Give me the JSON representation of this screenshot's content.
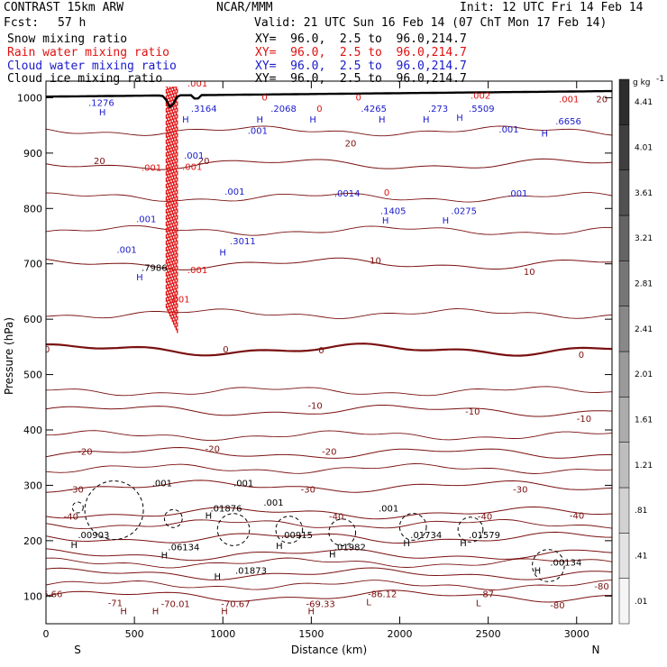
{
  "header": {
    "model": "CONTRAST 15km ARW",
    "org": "NCAR/MMM",
    "init": "Init: 12 UTC Fri 14 Feb 14",
    "fcst_label": "Fcst:",
    "fcst_value": "57 h",
    "valid": "Valid: 21 UTC Sun 16 Feb 14 (07 ChT Mon 17 Feb 14)",
    "fields": [
      {
        "name": "Snow mixing ratio",
        "xy": "XY=  96.0,  2.5 to  96.0,214.7",
        "color": "#000000"
      },
      {
        "name": "Rain water mixing ratio",
        "xy": "XY=  96.0,  2.5 to  96.0,214.7",
        "color": "#e01010"
      },
      {
        "name": "Cloud water mixing ratio",
        "xy": "XY=  96.0,  2.5 to  96.0,214.7",
        "color": "#1a1acc"
      },
      {
        "name": "Cloud ice mixing ratio",
        "xy": "XY=  96.0,  2.5 to  96.0,214.7",
        "color": "#000000"
      }
    ]
  },
  "chart_data": {
    "type": "cross-section contour",
    "xlabel": "Distance (km)",
    "ylabel": "Pressure (hPa)",
    "xlim": [
      0,
      3200
    ],
    "ylim": [
      1030,
      50
    ],
    "x_ticks": [
      0,
      500,
      1000,
      1500,
      2000,
      2500,
      3000
    ],
    "y_ticks": [
      100,
      200,
      300,
      400,
      500,
      600,
      700,
      800,
      900,
      1000
    ],
    "x_end_left": "S",
    "x_end_right": "N",
    "colorbar": {
      "unit": "g kg",
      "unit_exp": "-1",
      "ticks": [
        ".01",
        ".41",
        ".81",
        "1.21",
        "1.61",
        "2.01",
        "2.41",
        "2.81",
        "3.21",
        "3.61",
        "4.01",
        "4.41"
      ]
    },
    "isotherms": [
      {
        "value": -80,
        "label": "-80",
        "p": 100
      },
      {
        "value": -70,
        "label": "-70",
        "p": 140
      },
      {
        "value": -60,
        "label": "-60",
        "p": 175
      },
      {
        "value": -50,
        "label": "-50",
        "p": 205
      },
      {
        "value": -40,
        "label": "-40",
        "p": 250
      },
      {
        "value": -30,
        "label": "-30",
        "p": 298
      },
      {
        "value": -20,
        "label": "-20",
        "p": 358
      },
      {
        "value": -10,
        "label": "-10",
        "p": 435
      },
      {
        "value": 0,
        "label": "0",
        "p": 545
      },
      {
        "value": 10,
        "label": "10",
        "p": 700
      },
      {
        "value": 20,
        "label": "20",
        "p": 880
      }
    ],
    "contour_labels": [
      {
        "text": "-71",
        "x": 350,
        "p": 82,
        "color": "#7a1010"
      },
      {
        "text": "-70.01",
        "x": 650,
        "p": 80,
        "color": "#7a1010"
      },
      {
        "text": "-70.67",
        "x": 990,
        "p": 80,
        "color": "#7a1010"
      },
      {
        "text": "-69.33",
        "x": 1470,
        "p": 80,
        "color": "#7a1010"
      },
      {
        "text": "-86.12",
        "x": 1820,
        "p": 98,
        "color": "#7a1010"
      },
      {
        "text": "-87",
        "x": 2450,
        "p": 98,
        "color": "#7a1010"
      },
      {
        "text": "-80",
        "x": 2850,
        "p": 78,
        "color": "#7a1010"
      },
      {
        "text": "-80",
        "x": 3100,
        "p": 112,
        "color": "#7a1010"
      },
      {
        "text": "6.66",
        "x": -20,
        "p": 98,
        "color": "#7a1010"
      },
      {
        "text": "-40",
        "x": 100,
        "p": 238,
        "color": "#7a1010"
      },
      {
        "text": "-30",
        "x": 130,
        "p": 287,
        "color": "#7a1010"
      },
      {
        "text": "-20",
        "x": 180,
        "p": 355,
        "color": "#7a1010"
      },
      {
        "text": "-40",
        "x": 1600,
        "p": 238,
        "color": "#7a1010"
      },
      {
        "text": "-40",
        "x": 2440,
        "p": 238,
        "color": "#7a1010"
      },
      {
        "text": "-40",
        "x": 2960,
        "p": 240,
        "color": "#7a1010"
      },
      {
        "text": "-30",
        "x": 1440,
        "p": 287,
        "color": "#7a1010"
      },
      {
        "text": "-30",
        "x": 2640,
        "p": 287,
        "color": "#7a1010"
      },
      {
        "text": "-20",
        "x": 900,
        "p": 360,
        "color": "#7a1010"
      },
      {
        "text": "-20",
        "x": 1560,
        "p": 355,
        "color": "#7a1010"
      },
      {
        "text": "-10",
        "x": 1480,
        "p": 438,
        "color": "#7a1010"
      },
      {
        "text": "-10",
        "x": 2370,
        "p": 428,
        "color": "#7a1010"
      },
      {
        "text": "-10",
        "x": 3000,
        "p": 415,
        "color": "#7a1010"
      },
      {
        "text": "0",
        "x": -10,
        "p": 540,
        "color": "#7a1010"
      },
      {
        "text": "0",
        "x": 1000,
        "p": 540,
        "color": "#7a1010"
      },
      {
        "text": "0",
        "x": 1540,
        "p": 538,
        "color": "#7a1010"
      },
      {
        "text": "0",
        "x": 3010,
        "p": 530,
        "color": "#7a1010"
      },
      {
        "text": "10",
        "x": 1830,
        "p": 700,
        "color": "#7a1010"
      },
      {
        "text": "10",
        "x": 2700,
        "p": 680,
        "color": "#7a1010"
      },
      {
        "text": "20",
        "x": 270,
        "p": 880,
        "color": "#7a1010"
      },
      {
        "text": "20",
        "x": 860,
        "p": 880,
        "color": "#7a1010"
      },
      {
        "text": "20",
        "x": 1690,
        "p": 912,
        "color": "#7a1010"
      },
      {
        "text": "20",
        "x": 3110,
        "p": 992,
        "color": "#7a1010"
      },
      {
        "text": "H",
        "x": 420,
        "p": 67,
        "color": "#7a1010"
      },
      {
        "text": "H",
        "x": 600,
        "p": 67,
        "color": "#7a1010"
      },
      {
        "text": "H",
        "x": 990,
        "p": 67,
        "color": "#7a1010"
      },
      {
        "text": "H",
        "x": 1480,
        "p": 67,
        "color": "#7a1010"
      },
      {
        "text": "L",
        "x": 1810,
        "p": 83,
        "color": "#7a1010"
      },
      {
        "text": "L",
        "x": 2430,
        "p": 82,
        "color": "#7a1010"
      },
      {
        "text": ".00903",
        "x": 180,
        "p": 205,
        "color": "#000000"
      },
      {
        "text": ".06134",
        "x": 690,
        "p": 183,
        "color": "#000000"
      },
      {
        "text": ".01873",
        "x": 1070,
        "p": 140,
        "color": "#000000"
      },
      {
        "text": ".00915",
        "x": 1330,
        "p": 205,
        "color": "#000000"
      },
      {
        "text": ".01982",
        "x": 1630,
        "p": 183,
        "color": "#000000"
      },
      {
        "text": ".01734",
        "x": 2060,
        "p": 205,
        "color": "#000000"
      },
      {
        "text": ".01579",
        "x": 2390,
        "p": 205,
        "color": "#000000"
      },
      {
        "text": ".00134",
        "x": 2850,
        "p": 155,
        "color": "#000000"
      },
      {
        "text": ".01876",
        "x": 930,
        "p": 253,
        "color": "#000000"
      },
      {
        "text": ".001",
        "x": 1230,
        "p": 263,
        "color": "#000000"
      },
      {
        "text": ".001",
        "x": 1880,
        "p": 253,
        "color": "#000000"
      },
      {
        "text": ".001",
        "x": 600,
        "p": 298,
        "color": "#000000"
      },
      {
        "text": ".001",
        "x": 1060,
        "p": 298,
        "color": "#000000"
      },
      {
        "text": "H",
        "x": 950,
        "p": 130,
        "color": "#000000"
      },
      {
        "text": "H",
        "x": 140,
        "p": 187,
        "color": "#000000"
      },
      {
        "text": "H",
        "x": 650,
        "p": 168,
        "color": "#000000"
      },
      {
        "text": "H",
        "x": 1300,
        "p": 185,
        "color": "#000000"
      },
      {
        "text": "H",
        "x": 1600,
        "p": 170,
        "color": "#000000"
      },
      {
        "text": "H",
        "x": 2020,
        "p": 190,
        "color": "#000000"
      },
      {
        "text": "H",
        "x": 2340,
        "p": 190,
        "color": "#000000"
      },
      {
        "text": "H",
        "x": 2760,
        "p": 140,
        "color": "#000000"
      },
      {
        "text": "H",
        "x": 900,
        "p": 240,
        "color": "#000000"
      },
      {
        "text": "H",
        "x": 510,
        "p": 670,
        "color": "#1a1acc"
      },
      {
        "text": ".7986",
        "x": 540,
        "p": 687,
        "color": "#000000"
      },
      {
        "text": ".001",
        "x": 400,
        "p": 720,
        "color": "#1a1acc"
      },
      {
        "text": ".001",
        "x": 510,
        "p": 775,
        "color": "#1a1acc"
      },
      {
        "text": "H",
        "x": 980,
        "p": 715,
        "color": "#1a1acc"
      },
      {
        "text": ".3011",
        "x": 1040,
        "p": 735,
        "color": "#1a1acc"
      },
      {
        "text": ".001",
        "x": 1010,
        "p": 825,
        "color": "#1a1acc"
      },
      {
        "text": "H",
        "x": 1900,
        "p": 773,
        "color": "#1a1acc"
      },
      {
        "text": ".1405",
        "x": 1890,
        "p": 790,
        "color": "#1a1acc"
      },
      {
        "text": "0",
        "x": 1910,
        "p": 823,
        "color": "#e01010"
      },
      {
        "text": ".0014",
        "x": 1630,
        "p": 822,
        "color": "#1a1acc"
      },
      {
        "text": "H",
        "x": 2240,
        "p": 773,
        "color": "#1a1acc"
      },
      {
        "text": ".0275",
        "x": 2290,
        "p": 790,
        "color": "#1a1acc"
      },
      {
        "text": ".001",
        "x": 2610,
        "p": 822,
        "color": "#1a1acc"
      },
      {
        "text": ".001",
        "x": 800,
        "p": 683,
        "color": "#e01010"
      },
      {
        "text": ".001",
        "x": 540,
        "p": 868,
        "color": "#e01010"
      },
      {
        "text": ".001",
        "x": 780,
        "p": 890,
        "color": "#1a1acc"
      },
      {
        "text": ".001",
        "x": 1140,
        "p": 935,
        "color": "#1a1acc"
      },
      {
        "text": ".001",
        "x": 2560,
        "p": 937,
        "color": "#1a1acc"
      },
      {
        "text": "H",
        "x": 300,
        "p": 968,
        "color": "#1a1acc"
      },
      {
        "text": ".1276",
        "x": 240,
        "p": 985,
        "color": "#1a1acc"
      },
      {
        "text": "H",
        "x": 770,
        "p": 955,
        "color": "#1a1acc"
      },
      {
        "text": ".3164",
        "x": 820,
        "p": 975,
        "color": "#1a1acc"
      },
      {
        "text": "H",
        "x": 1190,
        "p": 955,
        "color": "#1a1acc"
      },
      {
        "text": ".2068",
        "x": 1270,
        "p": 975,
        "color": "#1a1acc"
      },
      {
        "text": "H",
        "x": 1490,
        "p": 955,
        "color": "#1a1acc"
      },
      {
        "text": ".4265",
        "x": 1780,
        "p": 975,
        "color": "#1a1acc"
      },
      {
        "text": "H",
        "x": 1880,
        "p": 955,
        "color": "#1a1acc"
      },
      {
        "text": "H",
        "x": 2130,
        "p": 955,
        "color": "#1a1acc"
      },
      {
        "text": ".273",
        "x": 2160,
        "p": 975,
        "color": "#1a1acc"
      },
      {
        "text": "H",
        "x": 2320,
        "p": 958,
        "color": "#1a1acc"
      },
      {
        "text": ".5509",
        "x": 2390,
        "p": 975,
        "color": "#1a1acc"
      },
      {
        "text": ".002",
        "x": 2400,
        "p": 998,
        "color": "#e01010"
      },
      {
        "text": "H",
        "x": 2800,
        "p": 930,
        "color": "#1a1acc"
      },
      {
        "text": ".6656",
        "x": 2880,
        "p": 952,
        "color": "#1a1acc"
      },
      {
        "text": ".001",
        "x": 2900,
        "p": 992,
        "color": "#e01010"
      },
      {
        "text": "0",
        "x": 1220,
        "p": 995,
        "color": "#e01010"
      },
      {
        "text": "0",
        "x": 1530,
        "p": 975,
        "color": "#e01010"
      },
      {
        "text": "0",
        "x": 1750,
        "p": 995,
        "color": "#e01010"
      },
      {
        "text": ".001",
        "x": 800,
        "p": 1020,
        "color": "#e01010"
      },
      {
        "text": ".001",
        "x": 770,
        "p": 870,
        "color": "#e01010"
      },
      {
        "text": ".001",
        "x": 700,
        "p": 630,
        "color": "#e01010"
      }
    ]
  }
}
